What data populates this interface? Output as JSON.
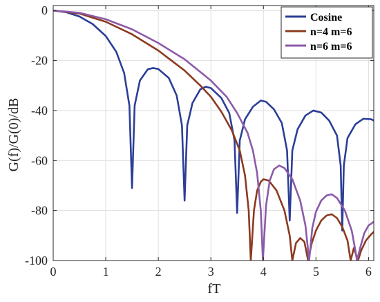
{
  "chart_data": {
    "type": "line",
    "title": "",
    "xlabel": "fT",
    "ylabel": "G(f)/G(0)/dB",
    "xlim": [
      0,
      6.1
    ],
    "ylim": [
      -100,
      2
    ],
    "x_ticks": [
      0,
      1,
      2,
      3,
      4,
      5,
      6
    ],
    "y_ticks": [
      0,
      -20,
      -40,
      -60,
      -80,
      -100
    ],
    "x_tick_labels": [
      "0",
      "1",
      "2",
      "3",
      "4",
      "5",
      "6"
    ],
    "y_tick_labels": [
      "0",
      "-20",
      "-40",
      "-60",
      "-80",
      "-100"
    ],
    "grid": true,
    "legend_position": "top-right",
    "series": [
      {
        "name": "Cosine",
        "color": "#2c3e97",
        "points": [
          [
            0,
            0
          ],
          [
            0.25,
            -0.7
          ],
          [
            0.5,
            -2.4
          ],
          [
            0.75,
            -5.4
          ],
          [
            1.0,
            -10.2
          ],
          [
            1.2,
            -16.5
          ],
          [
            1.35,
            -25
          ],
          [
            1.45,
            -38
          ],
          [
            1.5,
            -71
          ],
          [
            1.55,
            -38
          ],
          [
            1.65,
            -28
          ],
          [
            1.8,
            -23.5
          ],
          [
            1.9,
            -23
          ],
          [
            2.0,
            -23.4
          ],
          [
            2.2,
            -27
          ],
          [
            2.35,
            -34
          ],
          [
            2.45,
            -46
          ],
          [
            2.5,
            -76
          ],
          [
            2.55,
            -46
          ],
          [
            2.65,
            -37
          ],
          [
            2.8,
            -31.5
          ],
          [
            2.9,
            -30.5
          ],
          [
            3.0,
            -31
          ],
          [
            3.2,
            -35
          ],
          [
            3.35,
            -41
          ],
          [
            3.45,
            -52
          ],
          [
            3.5,
            -81
          ],
          [
            3.55,
            -52
          ],
          [
            3.65,
            -43.5
          ],
          [
            3.8,
            -38.5
          ],
          [
            3.95,
            -36
          ],
          [
            4.05,
            -36.5
          ],
          [
            4.2,
            -39.5
          ],
          [
            4.35,
            -45
          ],
          [
            4.45,
            -56
          ],
          [
            4.5,
            -84
          ],
          [
            4.55,
            -56
          ],
          [
            4.65,
            -47.5
          ],
          [
            4.8,
            -42
          ],
          [
            4.95,
            -40
          ],
          [
            5.1,
            -40.8
          ],
          [
            5.25,
            -44
          ],
          [
            5.4,
            -50
          ],
          [
            5.47,
            -62
          ],
          [
            5.5,
            -88
          ],
          [
            5.53,
            -62
          ],
          [
            5.6,
            -51
          ],
          [
            5.75,
            -45.5
          ],
          [
            5.9,
            -43.3
          ],
          [
            6.05,
            -43.5
          ],
          [
            6.1,
            -44
          ]
        ]
      },
      {
        "name": "n=4 m=6",
        "color": "#8b3a1f",
        "points": [
          [
            0,
            0
          ],
          [
            0.5,
            -1.2
          ],
          [
            1.0,
            -4.5
          ],
          [
            1.5,
            -9.5
          ],
          [
            2.0,
            -16
          ],
          [
            2.5,
            -24
          ],
          [
            2.8,
            -30
          ],
          [
            3.0,
            -34.5
          ],
          [
            3.2,
            -40.5
          ],
          [
            3.4,
            -48
          ],
          [
            3.55,
            -56
          ],
          [
            3.65,
            -66
          ],
          [
            3.72,
            -80
          ],
          [
            3.76,
            -100
          ],
          [
            3.82,
            -80
          ],
          [
            3.88,
            -72
          ],
          [
            3.95,
            -68.5
          ],
          [
            4.0,
            -67.5
          ],
          [
            4.1,
            -68
          ],
          [
            4.25,
            -72
          ],
          [
            4.4,
            -80
          ],
          [
            4.5,
            -90
          ],
          [
            4.55,
            -100
          ],
          [
            4.62,
            -93
          ],
          [
            4.7,
            -91
          ],
          [
            4.78,
            -92.5
          ],
          [
            4.85,
            -100
          ],
          [
            4.92,
            -93
          ],
          [
            5.0,
            -88
          ],
          [
            5.1,
            -84
          ],
          [
            5.2,
            -82
          ],
          [
            5.3,
            -81.5
          ],
          [
            5.4,
            -83
          ],
          [
            5.5,
            -86.5
          ],
          [
            5.6,
            -92
          ],
          [
            5.66,
            -100
          ],
          [
            5.72,
            -95
          ],
          [
            5.8,
            -100
          ],
          [
            5.86,
            -96
          ],
          [
            5.95,
            -92
          ],
          [
            6.05,
            -89.5
          ],
          [
            6.1,
            -88.5
          ]
        ]
      },
      {
        "name": "n=6 m=6",
        "color": "#8b5aa8",
        "points": [
          [
            0,
            0
          ],
          [
            0.5,
            -0.9
          ],
          [
            1.0,
            -3.5
          ],
          [
            1.5,
            -7.5
          ],
          [
            2.0,
            -13
          ],
          [
            2.5,
            -19.5
          ],
          [
            3.0,
            -28
          ],
          [
            3.3,
            -34.5
          ],
          [
            3.5,
            -41
          ],
          [
            3.7,
            -49
          ],
          [
            3.8,
            -56
          ],
          [
            3.88,
            -65
          ],
          [
            3.95,
            -80
          ],
          [
            3.99,
            -100
          ],
          [
            4.05,
            -78
          ],
          [
            4.12,
            -68
          ],
          [
            4.2,
            -63.5
          ],
          [
            4.3,
            -62
          ],
          [
            4.4,
            -63
          ],
          [
            4.55,
            -67.5
          ],
          [
            4.7,
            -76
          ],
          [
            4.8,
            -86
          ],
          [
            4.87,
            -100
          ],
          [
            4.93,
            -87
          ],
          [
            5.0,
            -80.5
          ],
          [
            5.1,
            -76
          ],
          [
            5.2,
            -74
          ],
          [
            5.3,
            -73.5
          ],
          [
            5.4,
            -75
          ],
          [
            5.55,
            -80
          ],
          [
            5.68,
            -88
          ],
          [
            5.75,
            -96
          ],
          [
            5.78,
            -100
          ],
          [
            5.84,
            -95
          ],
          [
            5.92,
            -89
          ],
          [
            6.0,
            -86
          ],
          [
            6.1,
            -84.5
          ]
        ]
      }
    ]
  }
}
